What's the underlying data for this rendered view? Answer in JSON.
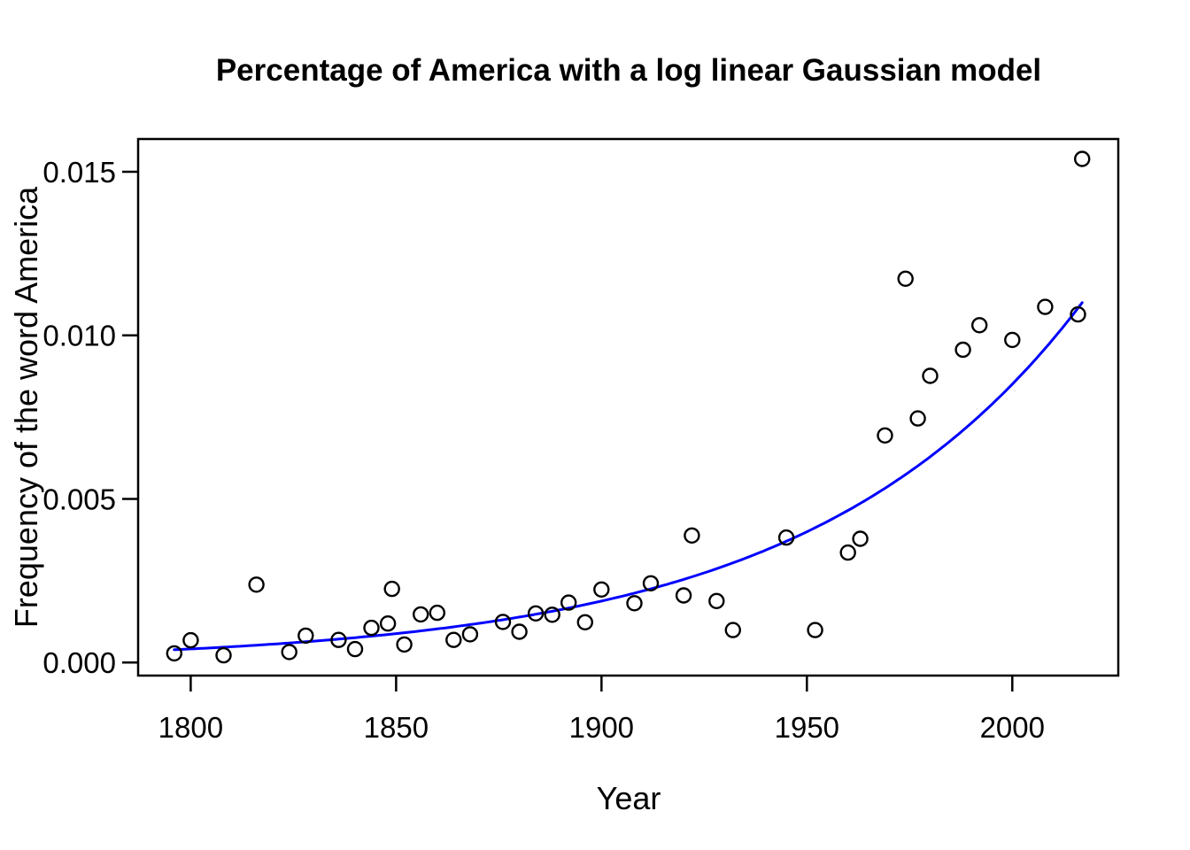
{
  "chart_data": {
    "type": "scatter",
    "title": "Percentage of America with a log linear Gaussian model",
    "xlabel": "Year",
    "ylabel": "Frequency of the word America",
    "xlim": [
      1787.2,
      2025.8
    ],
    "ylim": [
      -0.0004,
      0.016
    ],
    "grid": false,
    "legend": null,
    "background_color": "#FFFFFF",
    "point_color": "#000000",
    "point_shape": "open-circle",
    "curve_color": "#0000FF",
    "x_ticks": {
      "values": [
        1800,
        1850,
        1900,
        1950,
        2000
      ],
      "labels": [
        "1800",
        "1850",
        "1900",
        "1950",
        "2000"
      ]
    },
    "y_ticks": {
      "values": [
        0.0,
        0.005,
        0.01,
        0.015
      ],
      "labels": [
        "0.000",
        "0.005",
        "0.010",
        "0.015"
      ]
    },
    "points_format": "parallel arrays: years[i] with frequencies[i]",
    "years": [
      1796,
      1800,
      1808,
      1816,
      1824,
      1828,
      1836,
      1840,
      1844,
      1848,
      1849,
      1852,
      1856,
      1860,
      1864,
      1868,
      1876,
      1880,
      1884,
      1888,
      1892,
      1896,
      1900,
      1908,
      1912,
      1920,
      1922,
      1928,
      1932,
      1945,
      1952,
      1960,
      1963,
      1969,
      1974,
      1977,
      1980,
      1988,
      1992,
      2000,
      2008,
      2016,
      2017
    ],
    "frequencies": [
      0.00028,
      0.00068,
      0.00022,
      0.00238,
      0.00032,
      0.00082,
      0.00069,
      0.00041,
      0.00106,
      0.00119,
      0.00225,
      0.00055,
      0.00147,
      0.00152,
      0.00069,
      0.00086,
      0.00124,
      0.00094,
      0.0015,
      0.00146,
      0.00183,
      0.00123,
      0.00223,
      0.00181,
      0.00242,
      0.00205,
      0.00388,
      0.00188,
      0.00099,
      0.00382,
      0.00099,
      0.00336,
      0.00378,
      0.00694,
      0.01173,
      0.00746,
      0.00876,
      0.00956,
      0.01031,
      0.00986,
      0.01087,
      0.01064,
      0.01539
    ],
    "fit_curve": {
      "name": "log linear Gaussian model fit",
      "model": "frequency = value_at_start * exp(growth_rate_per_year * (year - start_year))",
      "start_year": 1796,
      "end_year": 2017,
      "value_at_start": 0.00039,
      "growth_rate_per_year": 0.01511,
      "value_at_end": 0.011
    }
  }
}
